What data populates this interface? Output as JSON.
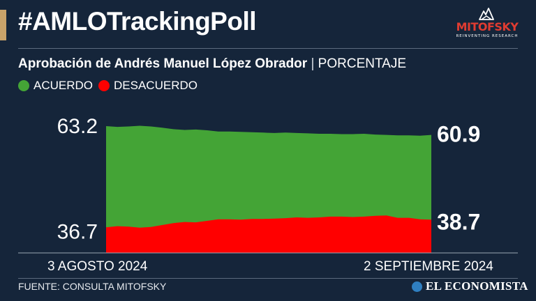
{
  "header": {
    "title": "#AMLOTrackingPoll",
    "accent_color": "#c9a36a",
    "logo_name": "MITOFSKY",
    "logo_tagline": "REINVENTING RESEARCH",
    "logo_color": "#e03c31"
  },
  "subtitle": {
    "main": "Aprobación de Andrés Manuel López Obrador",
    "separator": " | ",
    "unit": "PORCENTAJE"
  },
  "legend": [
    {
      "label": "ACUERDO",
      "color": "#44a436"
    },
    {
      "label": "DESACUERDO",
      "color": "#ff0000"
    }
  ],
  "chart_data": {
    "type": "area",
    "ylim": [
      30,
      63.2
    ],
    "y_tick_labels": [
      "63.2",
      "36.7"
    ],
    "x_start_label": "3 AGOSTO 2024",
    "x_end_label": "2 SEPTIEMBRE 2024",
    "series": [
      {
        "name": "ACUERDO",
        "color": "#44a436",
        "end_label": "60.9",
        "values": [
          63.2,
          63.0,
          63.1,
          63.3,
          63.1,
          62.8,
          62.4,
          62.2,
          62.3,
          62.1,
          61.8,
          61.8,
          61.7,
          61.6,
          61.5,
          61.4,
          61.5,
          61.4,
          61.3,
          61.2,
          61.2,
          61.1,
          61.1,
          61.2,
          61.0,
          60.9,
          60.8,
          60.8,
          60.7,
          60.9
        ]
      },
      {
        "name": "DESACUERDO",
        "color": "#ff0000",
        "end_label": "38.7",
        "values": [
          36.7,
          37.0,
          36.9,
          36.6,
          36.8,
          37.3,
          37.8,
          38.1,
          38.0,
          38.4,
          38.8,
          38.8,
          38.7,
          38.9,
          38.9,
          39.0,
          39.1,
          39.3,
          39.2,
          39.3,
          39.5,
          39.5,
          39.4,
          39.5,
          39.7,
          39.8,
          39.2,
          39.2,
          38.8,
          38.7
        ]
      }
    ]
  },
  "footer": {
    "source": "FUENTE: CONSULTA MITOFSKY",
    "brand": "EL ECONOMISTA",
    "brand_icon_color": "#2f7fc1"
  }
}
